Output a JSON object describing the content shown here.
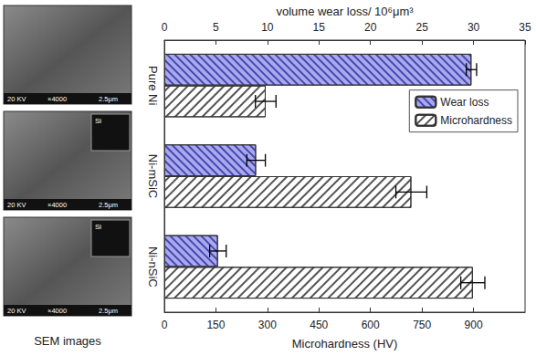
{
  "chart_data": {
    "type": "bar",
    "orientation": "horizontal",
    "categories": [
      "Pure Ni",
      "Ni-mSiC",
      "Ni-nSiC"
    ],
    "series": [
      {
        "name": "Wear loss",
        "axis": "x2",
        "color": "#a9a9f0",
        "values": [
          29.8,
          8.9,
          5.2
        ],
        "errors": [
          0.5,
          0.9,
          0.8
        ]
      },
      {
        "name": "Microhardness",
        "color": "#ffffff",
        "values": [
          295,
          719,
          898
        ],
        "errors": [
          30,
          45,
          35
        ]
      }
    ],
    "xlabel": "Microhardness (HV)",
    "xlim": [
      0,
      1050
    ],
    "xticks": [
      0,
      150,
      300,
      450,
      600,
      750,
      900
    ],
    "x2label": "volume wear loss/ 10⁶μm³",
    "x2lim": [
      0,
      35
    ],
    "x2ticks": [
      0,
      5,
      10,
      15,
      20,
      25,
      30,
      35
    ],
    "grid": false,
    "legend": "right"
  },
  "sem_images": {
    "caption": "SEM images",
    "images": [
      {
        "labels": [
          "20 KV",
          "×4000",
          "2.5μm"
        ],
        "inset": null
      },
      {
        "labels": [
          "20 KV",
          "×4000",
          "2.5μm"
        ],
        "inset": "Si"
      },
      {
        "labels": [
          "20 KV",
          "×4000",
          "2.5μm"
        ],
        "inset": "Si"
      }
    ]
  }
}
